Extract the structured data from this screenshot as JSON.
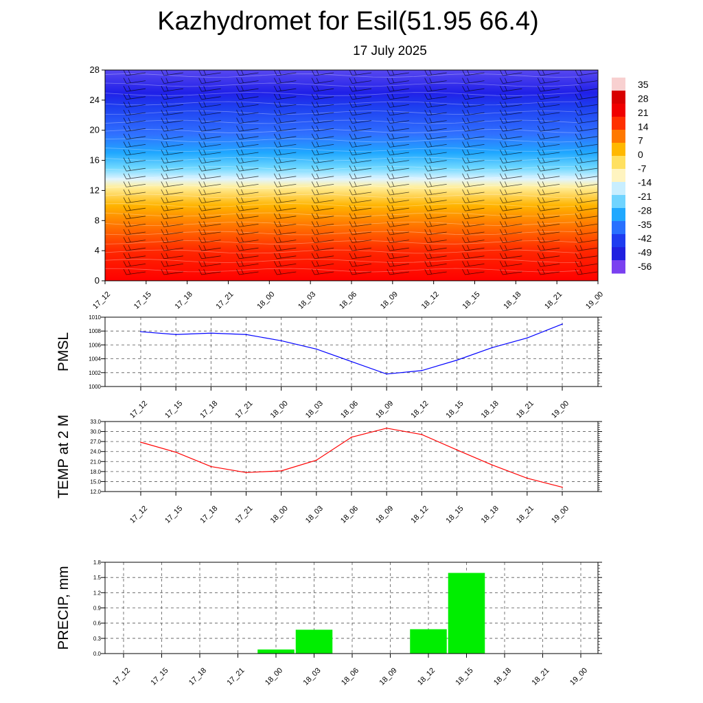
{
  "title": "Kazhydromet for Esil(51.95 66.4)",
  "date": "17 July 2025",
  "chart_data": [
    {
      "type": "heatmap",
      "name": "cross-section",
      "x_ticks": [
        "17_12",
        "17_15",
        "17_18",
        "17_21",
        "18_00",
        "18_03",
        "18_06",
        "18_09",
        "18_12",
        "18_15",
        "18_18",
        "18_21",
        "19_00"
      ],
      "ylim": [
        0,
        28
      ],
      "y_ticks": [
        "0",
        "4",
        "8",
        "12",
        "16",
        "20",
        "24",
        "28"
      ],
      "colorbar_labels": [
        "35",
        "28",
        "21",
        "14",
        "7",
        "0",
        "-7",
        "-14",
        "-21",
        "-28",
        "-35",
        "-42",
        "-49",
        "-56"
      ],
      "colorbar_range": [
        -60,
        38
      ],
      "color_stops": [
        {
          "level": 0,
          "color": "#ff0000"
        },
        {
          "level": 4,
          "color": "#ff2800"
        },
        {
          "level": 7,
          "color": "#ff6e00"
        },
        {
          "level": 10,
          "color": "#ffb400"
        },
        {
          "level": 12.5,
          "color": "#fff0a0"
        },
        {
          "level": 13.5,
          "color": "#e0f4ff"
        },
        {
          "level": 15,
          "color": "#70d8ff"
        },
        {
          "level": 17,
          "color": "#20a8ff"
        },
        {
          "level": 19.5,
          "color": "#3070ff"
        },
        {
          "level": 23,
          "color": "#1e40f0"
        },
        {
          "level": 25,
          "color": "#2020e8"
        },
        {
          "level": 28,
          "color": "#5848f0"
        }
      ],
      "colorbar_colors": [
        "#f8d0d0",
        "#d80000",
        "#f00000",
        "#ff3000",
        "#ff7800",
        "#ffb800",
        "#ffe060",
        "#fff4c0",
        "#c8eeff",
        "#70d4ff",
        "#20a8ff",
        "#2870ff",
        "#1e3cf0",
        "#2020e0",
        "#7a40f0"
      ]
    },
    {
      "type": "line",
      "ylabel": "PMSL",
      "categories": [
        "17_12",
        "17_15",
        "17_18",
        "17_21",
        "18_00",
        "18_03",
        "18_06",
        "18_09",
        "18_12",
        "18_15",
        "18_18",
        "18_21",
        "19_00"
      ],
      "values": [
        1007.9,
        1007.5,
        1007.7,
        1007.5,
        1006.6,
        1005.4,
        1003.6,
        1001.8,
        1002.3,
        1003.8,
        1005.6,
        1007.0,
        1009.0
      ],
      "ylim": [
        1000,
        1010
      ],
      "y_ticks": [
        "1000",
        "1002",
        "1004",
        "1006",
        "1008",
        "1010"
      ],
      "color": "#0000ff"
    },
    {
      "type": "line",
      "ylabel": "TEMP at 2 M",
      "categories": [
        "17_12",
        "17_15",
        "17_18",
        "17_21",
        "18_00",
        "18_03",
        "18_06",
        "18_09",
        "18_12",
        "18_15",
        "18_18",
        "18_21",
        "19_00"
      ],
      "values": [
        26.8,
        23.8,
        19.5,
        17.7,
        18.2,
        21.4,
        28.3,
        31.0,
        29.1,
        24.5,
        20.0,
        16.0,
        13.3
      ],
      "ylim": [
        12,
        33
      ],
      "y_ticks": [
        "12.0",
        "15.0",
        "18.0",
        "21.0",
        "24.0",
        "27.0",
        "30.0",
        "33.0"
      ],
      "color": "#ff0000"
    },
    {
      "type": "bar",
      "ylabel": "PRECIP, mm",
      "categories": [
        "17_12",
        "17_15",
        "17_18",
        "17_21",
        "18_00",
        "18_03",
        "18_06",
        "18_09",
        "18_12",
        "18_15",
        "18_18",
        "18_21",
        "19_00"
      ],
      "values": [
        0,
        0,
        0,
        0,
        0.08,
        0.47,
        0,
        0,
        0.48,
        1.59,
        0,
        0,
        0
      ],
      "ylim": [
        0,
        1.8
      ],
      "y_ticks": [
        "0.0",
        "0.3",
        "0.6",
        "0.9",
        "1.2",
        "1.5",
        "1.8"
      ],
      "color": "#00ee00"
    }
  ]
}
